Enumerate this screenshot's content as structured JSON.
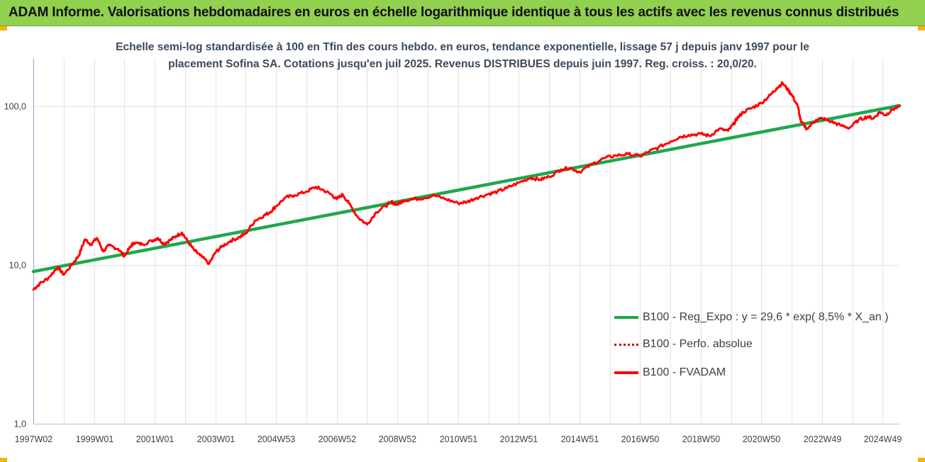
{
  "header": {
    "title": "ADAM Informe. Valorisations hebdomadaires en euros en échelle logarithmique identique à tous les actifs avec les revenus connus distribués"
  },
  "colors": {
    "banner": "#92d050",
    "corner": "#f2b400",
    "regression": "#1ea84b",
    "fvadam": "#ff0000",
    "perfo": "#c00000"
  },
  "chart_data": {
    "type": "line",
    "subtitle": [
      "Echelle semi-log standardisée à 100 en Tfin des cours hebdo. en euros, tendance exponentielle, lissage 57 j depuis janv 1997 pour le",
      "placement Sofina SA. Cotations jusqu'en juil 2025. Revenus DISTRIBUES depuis juin 1997. Reg. croiss. : 20,0/20."
    ],
    "y_scale": "log",
    "ylim": [
      1,
      400
    ],
    "y_ticks": [
      {
        "value": 1,
        "label": "1,0"
      },
      {
        "value": 10,
        "label": "10,0"
      },
      {
        "value": 100,
        "label": "100,0"
      }
    ],
    "xlim": [
      1997.0,
      2025.55
    ],
    "x_ticks": [
      {
        "value": 1997.0,
        "label": "1997W02"
      },
      {
        "value": 1999.0,
        "label": "1999W01"
      },
      {
        "value": 2001.0,
        "label": "2001W01"
      },
      {
        "value": 2003.0,
        "label": "2003W01"
      },
      {
        "value": 2005.0,
        "label": "2004W53"
      },
      {
        "value": 2007.0,
        "label": "2006W52"
      },
      {
        "value": 2009.0,
        "label": "2008W52"
      },
      {
        "value": 2011.0,
        "label": "2010W51"
      },
      {
        "value": 2013.0,
        "label": "2012W51"
      },
      {
        "value": 2015.0,
        "label": "2014W51"
      },
      {
        "value": 2017.0,
        "label": "2016W50"
      },
      {
        "value": 2019.0,
        "label": "2018W50"
      },
      {
        "value": 2021.0,
        "label": "2020W50"
      },
      {
        "value": 2023.0,
        "label": "2022W49"
      },
      {
        "value": 2025.0,
        "label": "2024W49"
      }
    ],
    "legend_position": "right",
    "series": [
      {
        "name": "B100 - Reg_Expo : y = 29,6 * exp( 8,5% *  X_an )",
        "style": "solid-thick",
        "color": "#1ea84b",
        "x": [
          1997.0,
          2025.55
        ],
        "y": [
          9.1,
          101
        ]
      },
      {
        "name": "B100 - Perfo. absolue",
        "style": "dotted",
        "color": "#c00000",
        "x": [],
        "y": []
      },
      {
        "name": "B100 - FVADAM",
        "style": "solid",
        "color": "#ff0000",
        "x": [
          1997.0,
          1997.2,
          1997.5,
          1997.8,
          1998.0,
          1998.3,
          1998.5,
          1998.7,
          1998.9,
          1999.1,
          1999.3,
          1999.5,
          1999.8,
          2000.0,
          2000.2,
          2000.3,
          2000.6,
          2000.9,
          2001.1,
          2001.3,
          2001.5,
          2001.7,
          2001.9,
          2002.1,
          2002.3,
          2002.5,
          2002.8,
          2003.0,
          2003.2,
          2003.5,
          2003.8,
          2004.0,
          2004.3,
          2004.6,
          2004.8,
          2005.0,
          2005.3,
          2005.6,
          2006.0,
          2006.3,
          2006.5,
          2006.8,
          2007.0,
          2007.2,
          2007.4,
          2007.7,
          2008.0,
          2008.3,
          2008.6,
          2008.8,
          2009.0,
          2009.2,
          2009.5,
          2009.9,
          2010.2,
          2010.6,
          2011.0,
          2011.3,
          2011.6,
          2012.0,
          2012.3,
          2012.6,
          2013.0,
          2013.4,
          2013.7,
          2014.0,
          2014.4,
          2014.7,
          2015.0,
          2015.4,
          2015.8,
          2016.2,
          2016.6,
          2017.0,
          2017.3,
          2017.6,
          2018.0,
          2018.3,
          2018.6,
          2019.0,
          2019.3,
          2019.6,
          2019.9,
          2020.1,
          2020.2,
          2020.4,
          2020.7,
          2021.0,
          2021.3,
          2021.5,
          2021.7,
          2021.9,
          2022.0,
          2022.2,
          2022.3,
          2022.5,
          2022.8,
          2023.0,
          2023.3,
          2023.6,
          2023.9,
          2024.2,
          2024.5,
          2024.7,
          2024.9,
          2025.1,
          2025.3,
          2025.55
        ],
        "y": [
          7.0,
          7.6,
          8.3,
          9.7,
          8.7,
          10.2,
          11.5,
          14.5,
          13.5,
          14.8,
          12.2,
          13.3,
          12.6,
          11.4,
          13.0,
          13.8,
          13.5,
          14.2,
          14.8,
          13.6,
          14.3,
          15.2,
          16.0,
          14.0,
          12.4,
          11.5,
          10.2,
          12.0,
          13.0,
          14.2,
          15.0,
          15.8,
          19.0,
          20.5,
          21.5,
          23.5,
          26.5,
          27.5,
          29.0,
          31.0,
          30.0,
          28.0,
          26.0,
          27.8,
          24.5,
          20.0,
          18.0,
          21.5,
          23.5,
          25.0,
          24.0,
          25.5,
          26.0,
          26.5,
          27.5,
          26.0,
          24.5,
          25.0,
          26.5,
          28.0,
          29.0,
          30.5,
          33.0,
          35.5,
          34.5,
          36.0,
          40.0,
          41.0,
          38.5,
          43.0,
          47.0,
          49.0,
          50.0,
          48.5,
          52.0,
          55.0,
          60.0,
          64.0,
          66.0,
          67.0,
          65.0,
          72.0,
          70.0,
          78.0,
          84.0,
          92.0,
          98.0,
          105.0,
          118.0,
          130.0,
          140.0,
          125.0,
          118.0,
          100.0,
          80.0,
          72.0,
          82.0,
          84.0,
          80.0,
          76.0,
          73.0,
          82.0,
          86.0,
          84.0,
          92.0,
          88.0,
          95.0,
          100.0
        ]
      }
    ]
  }
}
